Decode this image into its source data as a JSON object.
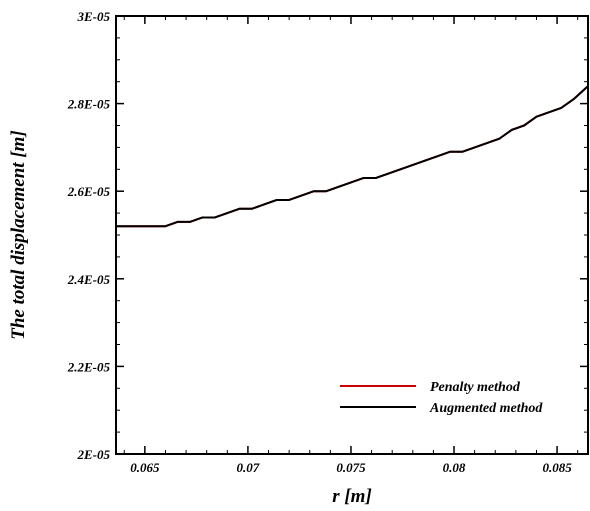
{
  "chart_data": {
    "type": "line",
    "xlabel": "r [m]",
    "ylabel": "The total displacement [m]",
    "xlim": [
      0.0636,
      0.0865
    ],
    "ylim": [
      2e-05,
      3e-05
    ],
    "x_ticks": [
      {
        "value": 0.065,
        "label": "0.065"
      },
      {
        "value": 0.07,
        "label": "0.07"
      },
      {
        "value": 0.075,
        "label": "0.075"
      },
      {
        "value": 0.08,
        "label": "0.08"
      },
      {
        "value": 0.085,
        "label": "0.085"
      }
    ],
    "y_ticks": [
      {
        "value": 2e-05,
        "label": "2E-05"
      },
      {
        "value": 2.2e-05,
        "label": "2.2E-05"
      },
      {
        "value": 2.4e-05,
        "label": "2.4E-05"
      },
      {
        "value": 2.6e-05,
        "label": "2.6E-05"
      },
      {
        "value": 2.8e-05,
        "label": "2.8E-05"
      },
      {
        "value": 3e-05,
        "label": "3E-05"
      }
    ],
    "grid": false,
    "legend_position": "bottom-right",
    "x": [
      0.0636,
      0.066,
      0.0666,
      0.0672,
      0.0678,
      0.0684,
      0.069,
      0.0696,
      0.0702,
      0.0708,
      0.0714,
      0.072,
      0.0726,
      0.0732,
      0.0738,
      0.0744,
      0.075,
      0.0756,
      0.0762,
      0.0768,
      0.0774,
      0.078,
      0.0786,
      0.0792,
      0.0798,
      0.0804,
      0.081,
      0.0816,
      0.0822,
      0.0828,
      0.0834,
      0.084,
      0.0846,
      0.0852,
      0.0858,
      0.0865
    ],
    "series": [
      {
        "name": "Penalty method",
        "color": "#cc0000",
        "values": [
          2.52e-05,
          2.52e-05,
          2.53e-05,
          2.53e-05,
          2.54e-05,
          2.54e-05,
          2.55e-05,
          2.56e-05,
          2.56e-05,
          2.57e-05,
          2.58e-05,
          2.58e-05,
          2.59e-05,
          2.6e-05,
          2.6e-05,
          2.61e-05,
          2.62e-05,
          2.63e-05,
          2.63e-05,
          2.64e-05,
          2.65e-05,
          2.66e-05,
          2.67e-05,
          2.68e-05,
          2.69e-05,
          2.69e-05,
          2.7e-05,
          2.71e-05,
          2.72e-05,
          2.74e-05,
          2.75e-05,
          2.77e-05,
          2.78e-05,
          2.79e-05,
          2.81e-05,
          2.84e-05
        ]
      },
      {
        "name": "Augmented method",
        "color": "#000000",
        "values": [
          2.52e-05,
          2.52e-05,
          2.53e-05,
          2.53e-05,
          2.54e-05,
          2.54e-05,
          2.55e-05,
          2.56e-05,
          2.56e-05,
          2.57e-05,
          2.58e-05,
          2.58e-05,
          2.59e-05,
          2.6e-05,
          2.6e-05,
          2.61e-05,
          2.62e-05,
          2.63e-05,
          2.63e-05,
          2.64e-05,
          2.65e-05,
          2.66e-05,
          2.67e-05,
          2.68e-05,
          2.69e-05,
          2.69e-05,
          2.7e-05,
          2.71e-05,
          2.72e-05,
          2.74e-05,
          2.75e-05,
          2.77e-05,
          2.78e-05,
          2.79e-05,
          2.81e-05,
          2.84e-05
        ]
      }
    ]
  }
}
